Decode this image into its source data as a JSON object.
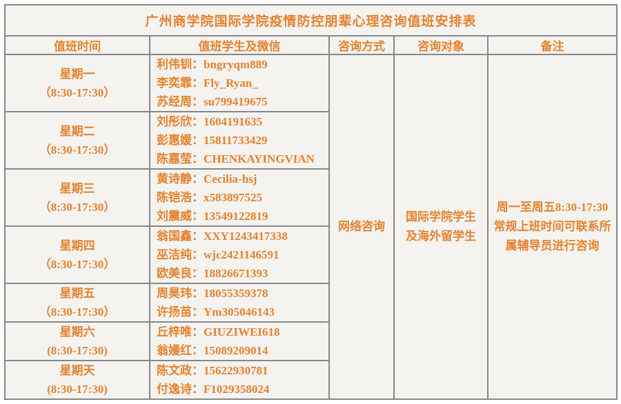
{
  "title": "广州商学院国际学院疫情防控朋辈心理咨询值班安排表",
  "columns": [
    "值班时间",
    "值班学生及微信",
    "咨询方式",
    "咨询对象",
    "备注"
  ],
  "rows": [
    {
      "day": "星期一",
      "time": "（8:30-17:30）",
      "students": [
        "利伟钏：bngryqm889",
        "李奕霏：Fly_Ryan_",
        "苏经周：su799419675"
      ]
    },
    {
      "day": "星期二",
      "time": "（8:30-17:30）",
      "students": [
        "刘彤欣：1604191635",
        "彭惠媛：15811733429",
        "陈嘉莹：CHENKAYINGVIAN"
      ]
    },
    {
      "day": "星期三",
      "time": "（8:30-17:30）",
      "students": [
        "黄诗静：Cecilia-hsj",
        "陈铠浩：x583897525",
        "刘震威：13549122819"
      ]
    },
    {
      "day": "星期四",
      "time": "（8:30-17:30）",
      "students": [
        "翁国鑫：XXY1243417338",
        "巫洁纯：wjc2421146591",
        "欧美良：18826671393"
      ]
    },
    {
      "day": "星期五",
      "time": "（8:30-17:30）",
      "students": [
        "周昊玮：18055359378",
        "许扬苗：Ym305046143"
      ]
    },
    {
      "day": "星期六",
      "time": "(8:30-17:30)",
      "students": [
        "丘梓唯：GIUZIWEI618",
        "翁嫚红：15089209014"
      ]
    },
    {
      "day": "星期天",
      "time": "(8:30-17:30)",
      "students": [
        "陈文政：15622930781",
        "付逸诗：F1029358024"
      ]
    }
  ],
  "merged": {
    "consult_method": "网络咨询",
    "consult_target_lines": [
      "国际学院学生",
      "及海外留学生"
    ],
    "remark_lines": [
      "周一至周五8:30-17:30",
      "常规上班时间可联系所",
      "属辅导员进行咨询"
    ]
  },
  "colors": {
    "accent": "#E5822F",
    "border": "#878787",
    "cell_background": "#F4F3F0",
    "page_background": "#FFFFFF"
  }
}
